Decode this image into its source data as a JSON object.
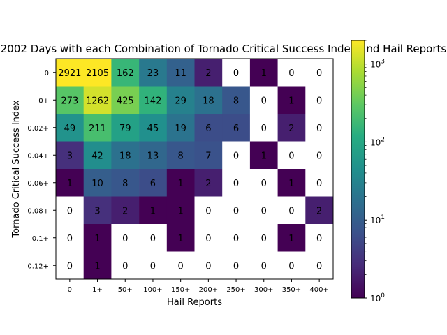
{
  "chart_data": {
    "type": "heatmap",
    "title": "2002 Days with each Combination of Tornado Critical Success Index and Hail Reports",
    "xlabel": "Hail Reports",
    "ylabel": "Tornado Critical Success Index",
    "x_categories": [
      "0",
      "1+",
      "50+",
      "100+",
      "150+",
      "200+",
      "250+",
      "300+",
      "350+",
      "400+"
    ],
    "y_categories": [
      "0",
      "0+",
      "0.02+",
      "0.04+",
      "0.06+",
      "0.08+",
      "0.1+",
      "0.12+"
    ],
    "values": [
      [
        2921,
        2105,
        162,
        23,
        11,
        2,
        0,
        1,
        0,
        0
      ],
      [
        273,
        1262,
        425,
        142,
        29,
        18,
        8,
        0,
        1,
        0
      ],
      [
        49,
        211,
        79,
        45,
        19,
        6,
        6,
        0,
        2,
        0
      ],
      [
        3,
        42,
        18,
        13,
        8,
        7,
        0,
        1,
        0,
        0
      ],
      [
        1,
        10,
        8,
        6,
        1,
        2,
        0,
        0,
        1,
        0
      ],
      [
        0,
        3,
        2,
        1,
        1,
        0,
        0,
        0,
        0,
        2
      ],
      [
        0,
        1,
        0,
        0,
        1,
        0,
        0,
        0,
        1,
        0
      ],
      [
        0,
        1,
        0,
        0,
        0,
        0,
        0,
        0,
        0,
        0
      ]
    ],
    "color_scale": "log",
    "colormap": "viridis",
    "zero_color": "#ffffff",
    "colorbar": {
      "range": [
        1,
        2000
      ],
      "tick_labels": [
        {
          "base": "10",
          "exp": "0",
          "value": 1
        },
        {
          "base": "10",
          "exp": "1",
          "value": 10
        },
        {
          "base": "10",
          "exp": "2",
          "value": 100
        },
        {
          "base": "10",
          "exp": "3",
          "value": 1000
        }
      ]
    },
    "grid": false
  }
}
